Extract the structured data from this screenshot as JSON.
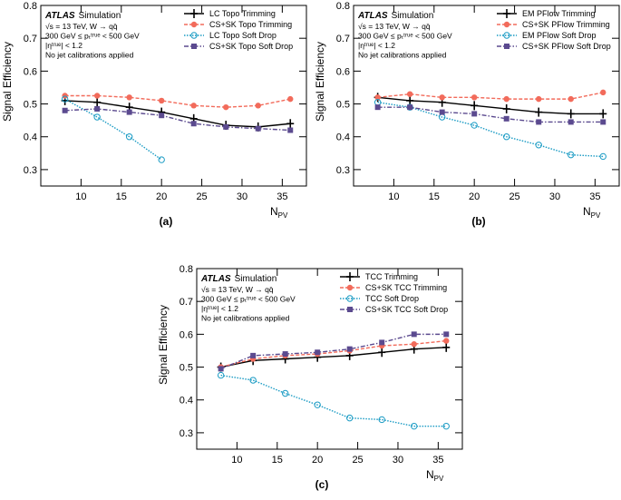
{
  "chart_data": [
    {
      "type": "line",
      "label": "(a)",
      "y_label": "Signal Efficiency",
      "x_label": "N",
      "x_label_sub": "PV",
      "brand": "ATLAS",
      "brand_note": "Simulation",
      "annotations": [
        "√s = 13 TeV, W → qq̄",
        "300 GeV ≤ pₜᵗʳᵘᵉ < 500 GeV",
        "|ηᵗʳᵘᵉ| < 1.2",
        "No jet calibrations applied"
      ],
      "x": [
        8,
        12,
        16,
        20,
        24,
        28,
        32,
        36
      ],
      "xlim": [
        5,
        38
      ],
      "xticks": [
        10,
        15,
        20,
        25,
        30,
        35
      ],
      "ylim": [
        0.25,
        0.8
      ],
      "yticks": [
        0.3,
        0.4,
        0.5,
        0.6,
        0.7,
        0.8
      ],
      "legend": "upper right",
      "series": [
        {
          "name": "LC Topo Trimming",
          "color": "#000000",
          "marker": "plus",
          "dash": "solid",
          "values": [
            0.51,
            0.505,
            0.49,
            0.475,
            0.455,
            0.435,
            0.43,
            0.44
          ]
        },
        {
          "name": "CS+SK Topo Trimming",
          "color": "#f26b5b",
          "marker": "circle",
          "dash": "dashed",
          "values": [
            0.525,
            0.525,
            0.52,
            0.51,
            0.495,
            0.49,
            0.495,
            0.515
          ]
        },
        {
          "name": "LC Topo Soft Drop",
          "color": "#1a9bc4",
          "marker": "open-circle",
          "dash": "dotted",
          "values": [
            0.515,
            0.46,
            0.4,
            0.33,
            null,
            null,
            null,
            null
          ]
        },
        {
          "name": "CS+SK Topo Soft Drop",
          "color": "#5b4a8f",
          "marker": "square",
          "dash": "dashdot",
          "values": [
            0.48,
            0.485,
            0.475,
            0.465,
            0.44,
            0.43,
            0.425,
            0.42
          ]
        }
      ]
    },
    {
      "type": "line",
      "label": "(b)",
      "y_label": "Signal Efficiency",
      "x_label": "N",
      "x_label_sub": "PV",
      "brand": "ATLAS",
      "brand_note": "Simulation",
      "annotations": [
        "√s = 13 TeV, W → qq̄",
        "300 GeV ≤ pₜᵗʳᵘᵉ < 500 GeV",
        "|ηᵗʳᵘᵉ| < 1.2",
        "No jet calibrations applied"
      ],
      "x": [
        8,
        12,
        16,
        20,
        24,
        28,
        32,
        36
      ],
      "xlim": [
        5,
        38
      ],
      "xticks": [
        10,
        15,
        20,
        25,
        30,
        35
      ],
      "ylim": [
        0.25,
        0.8
      ],
      "yticks": [
        0.3,
        0.4,
        0.5,
        0.6,
        0.7,
        0.8
      ],
      "legend": "upper right",
      "series": [
        {
          "name": "EM PFlow Trimming",
          "color": "#000000",
          "marker": "plus",
          "dash": "solid",
          "values": [
            0.52,
            0.51,
            0.505,
            0.495,
            0.485,
            0.475,
            0.47,
            0.47
          ]
        },
        {
          "name": "CS+SK PFlow Trimming",
          "color": "#f26b5b",
          "marker": "circle",
          "dash": "dashed",
          "values": [
            0.52,
            0.53,
            0.52,
            0.52,
            0.515,
            0.515,
            0.515,
            0.535
          ]
        },
        {
          "name": "EM PFlow Soft Drop",
          "color": "#1a9bc4",
          "marker": "open-circle",
          "dash": "dotted",
          "values": [
            0.505,
            0.49,
            0.46,
            0.435,
            0.4,
            0.375,
            0.345,
            0.34
          ]
        },
        {
          "name": "CS+SK PFlow Soft Drop",
          "color": "#5b4a8f",
          "marker": "square",
          "dash": "dashdot",
          "values": [
            0.49,
            0.49,
            0.475,
            0.47,
            0.455,
            0.445,
            0.445,
            0.445
          ]
        }
      ]
    },
    {
      "type": "line",
      "label": "(c)",
      "y_label": "Signal Efficiency",
      "x_label": "N",
      "x_label_sub": "PV",
      "brand": "ATLAS",
      "brand_note": "Simulation",
      "annotations": [
        "√s = 13 TeV, W → qq̄",
        "300 GeV ≤ pₜᵗʳᵘᵉ < 500 GeV",
        "|ηᵗʳᵘᵉ| < 1.2",
        "No jet calibrations applied"
      ],
      "x": [
        8,
        12,
        16,
        20,
        24,
        28,
        32,
        36
      ],
      "xlim": [
        5,
        38
      ],
      "xticks": [
        10,
        15,
        20,
        25,
        30,
        35
      ],
      "ylim": [
        0.25,
        0.8
      ],
      "yticks": [
        0.3,
        0.4,
        0.5,
        0.6,
        0.7,
        0.8
      ],
      "legend": "upper right",
      "series": [
        {
          "name": "TCC Trimming",
          "color": "#000000",
          "marker": "plus",
          "dash": "solid",
          "values": [
            0.5,
            0.52,
            0.525,
            0.53,
            0.535,
            0.545,
            0.555,
            0.56
          ]
        },
        {
          "name": "CS+SK TCC Trimming",
          "color": "#f26b5b",
          "marker": "circle",
          "dash": "dashed",
          "values": [
            0.5,
            0.525,
            0.535,
            0.54,
            0.55,
            0.565,
            0.57,
            0.58
          ]
        },
        {
          "name": "TCC Soft Drop",
          "color": "#1a9bc4",
          "marker": "open-circle",
          "dash": "dotted",
          "values": [
            0.475,
            0.46,
            0.42,
            0.385,
            0.345,
            0.34,
            0.32,
            0.32
          ]
        },
        {
          "name": "CS+SK TCC Soft Drop",
          "color": "#5b4a8f",
          "marker": "square",
          "dash": "dashdot",
          "values": [
            0.495,
            0.535,
            0.54,
            0.545,
            0.555,
            0.575,
            0.6,
            0.6
          ]
        }
      ]
    }
  ]
}
